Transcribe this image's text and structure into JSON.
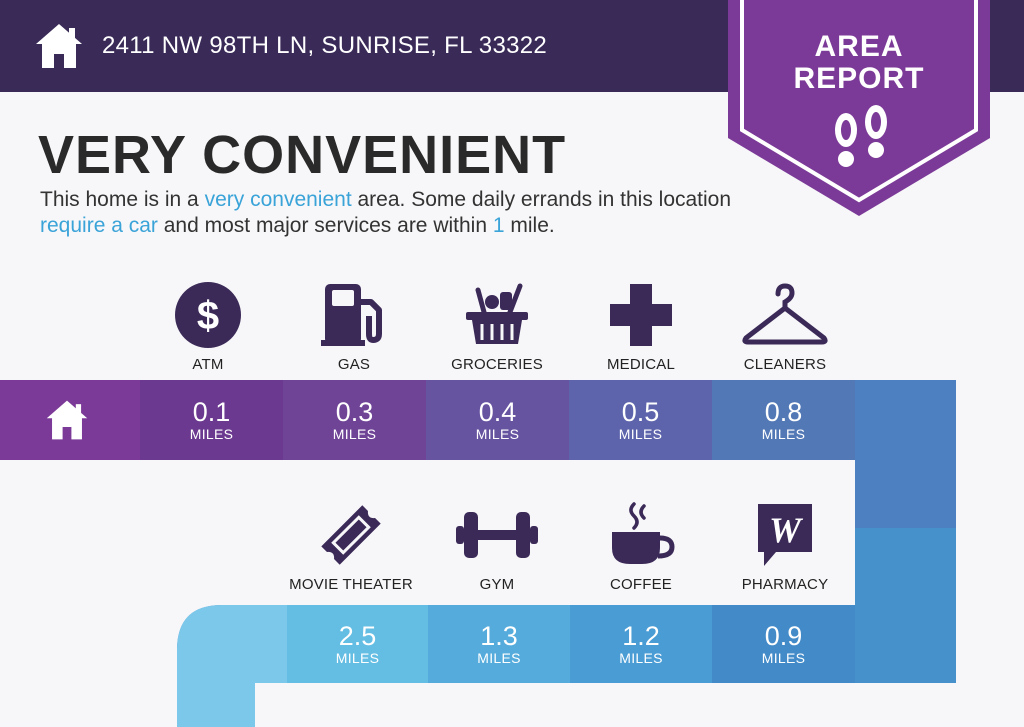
{
  "header": {
    "address": "2411 NW 98TH LN, SUNRISE, FL 33322",
    "home_icon": "home-icon"
  },
  "badge": {
    "line1": "AREA",
    "line2": "REPORT",
    "icon": "footprints-icon",
    "color": "#7b3a97"
  },
  "title": "VERY CONVENIENT",
  "description": {
    "p1": "This home is in a ",
    "h1": "very convenient",
    "p2": "  area. Some daily errands in this location ",
    "h2": "require a car",
    "p3": " and most major services are within ",
    "h3": "1",
    "p4": " mile."
  },
  "unit_label": "MILES",
  "top_row": [
    {
      "label": "ATM",
      "icon": "dollar-icon",
      "distance": "0.1",
      "color": "#6b3990"
    },
    {
      "label": "GAS",
      "icon": "gas-pump-icon",
      "distance": "0.3",
      "color": "#6f4497"
    },
    {
      "label": "GROCERIES",
      "icon": "grocery-basket-icon",
      "distance": "0.4",
      "color": "#6754a1"
    },
    {
      "label": "MEDICAL",
      "icon": "medical-cross-icon",
      "distance": "0.5",
      "color": "#5d64ab"
    },
    {
      "label": "CLEANERS",
      "icon": "hanger-icon",
      "distance": "0.8",
      "color": "#5278b5"
    }
  ],
  "bottom_row": [
    {
      "label": "MOVIE THEATER",
      "icon": "ticket-icon",
      "distance": "2.5",
      "color": "#64bde3"
    },
    {
      "label": "GYM",
      "icon": "dumbbell-icon",
      "distance": "1.3",
      "color": "#55acdc"
    },
    {
      "label": "COFFEE",
      "icon": "coffee-cup-icon",
      "distance": "1.2",
      "color": "#4a9cd4"
    },
    {
      "label": "PHARMACY",
      "icon": "pharmacy-logo-icon",
      "distance": "0.9",
      "color": "#428ac8"
    }
  ],
  "colors": {
    "header": "#3a2a58",
    "icon": "#3b2a58",
    "highlight": "#3aa3d8",
    "start_cell": "#7b3a97"
  }
}
